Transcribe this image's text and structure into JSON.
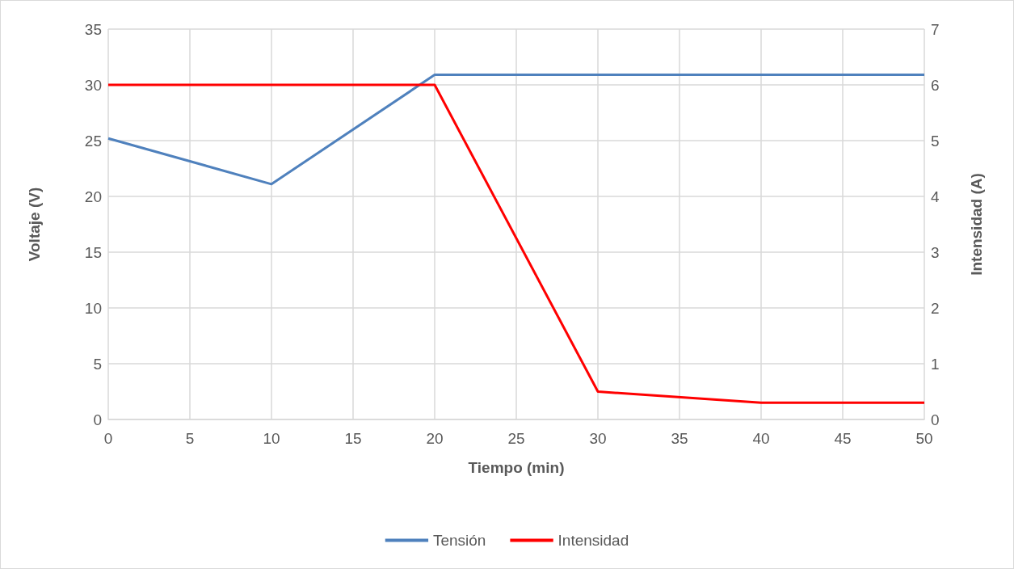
{
  "chart_data": {
    "type": "line",
    "xlabel": "Tiempo (min)",
    "ylabel": "Voltaje (V)",
    "y2label": "Intensidad (A)",
    "x": [
      0,
      10,
      20,
      30,
      40,
      50
    ],
    "series": [
      {
        "name": "Tensión",
        "color": "#4f81bd",
        "values": [
          25.2,
          21.1,
          30.9,
          30.9,
          30.9,
          30.9
        ]
      },
      {
        "name": "Intensidad",
        "color": "#ff0000",
        "axis": "y2",
        "values": [
          6,
          6,
          6,
          0.5,
          0.3,
          0.3
        ]
      }
    ],
    "xlim": [
      0,
      50
    ],
    "xticks": [
      0,
      5,
      10,
      15,
      20,
      25,
      30,
      35,
      40,
      45,
      50
    ],
    "ylim": [
      0,
      35
    ],
    "yticks": [
      0,
      5,
      10,
      15,
      20,
      25,
      30,
      35
    ],
    "y2lim": [
      0,
      7
    ],
    "y2ticks": [
      0,
      1,
      2,
      3,
      4,
      5,
      6,
      7
    ],
    "grid": true,
    "legend": "bottom",
    "marker": "none",
    "line_style": "solid"
  }
}
